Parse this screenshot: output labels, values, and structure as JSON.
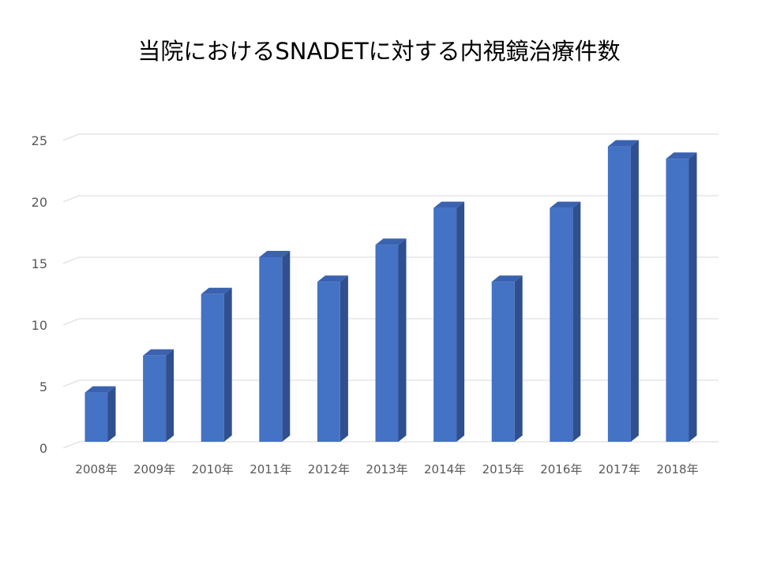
{
  "chart_data": {
    "type": "bar",
    "title": "当院におけるSNADETに対する内視鏡治療件数",
    "xlabel": "",
    "ylabel": "",
    "categories": [
      "2008年",
      "2009年",
      "2010年",
      "2011年",
      "2012年",
      "2013年",
      "2014年",
      "2015年",
      "2016年",
      "2017年",
      "2018年"
    ],
    "values": [
      4,
      7,
      12,
      15,
      13,
      16,
      19,
      13,
      19,
      24,
      23
    ],
    "ylim": [
      0,
      25
    ],
    "yticks": [
      0,
      5,
      10,
      15,
      20,
      25
    ],
    "grid": true,
    "legend": "none",
    "bar_color": "#4472C4",
    "bar_side_color": "#2F4F8F",
    "bar_top_color": "#3A62B0"
  }
}
